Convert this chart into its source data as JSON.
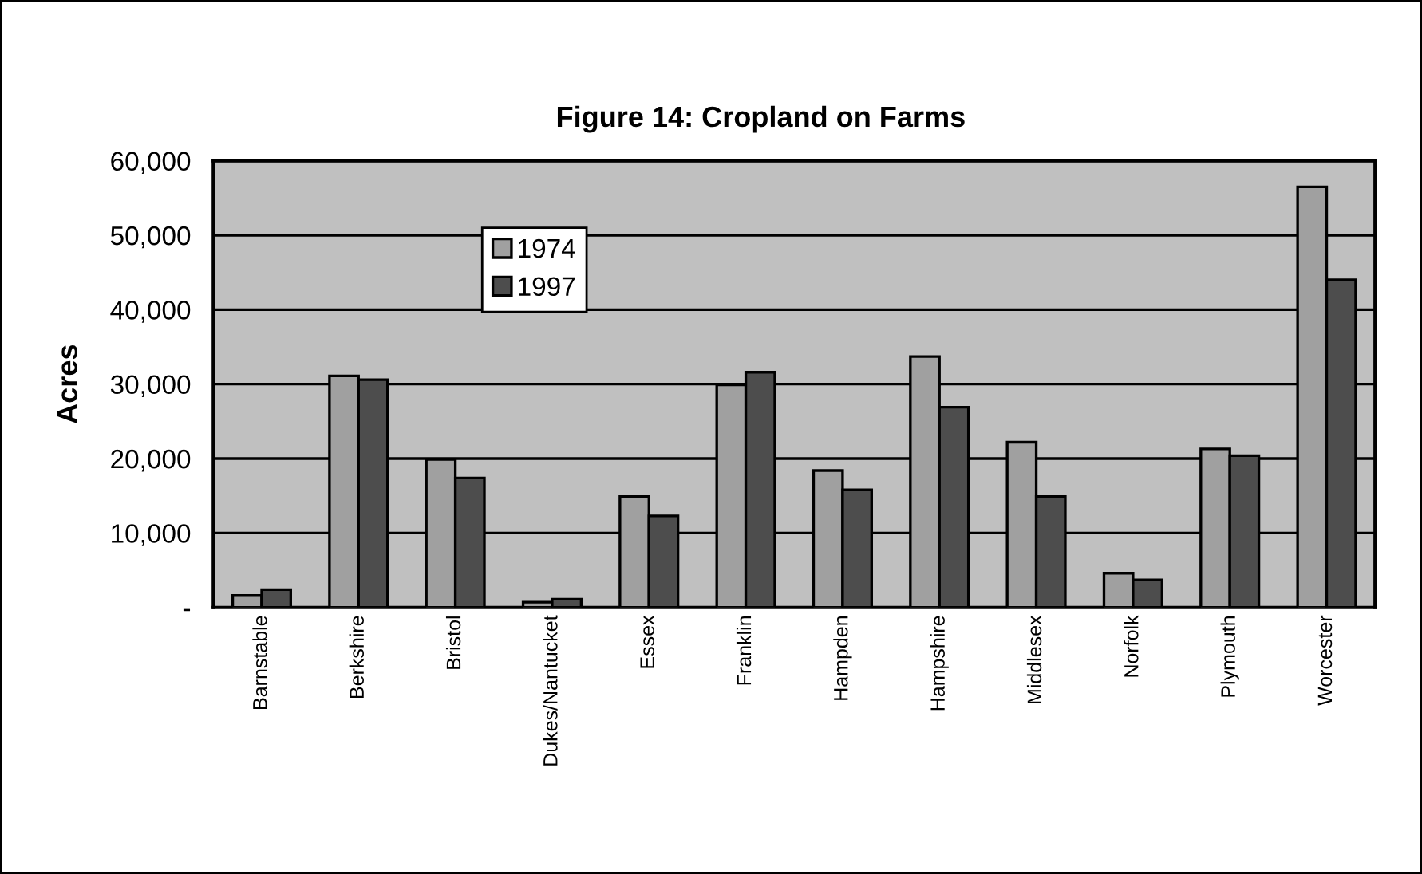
{
  "chart_data": {
    "type": "bar",
    "title": "Figure 14: Cropland on Farms",
    "ylabel": "Acres",
    "categories": [
      "Barnstable",
      "Berkshire",
      "Bristol",
      "Dukes/Nantucket",
      "Essex",
      "Franklin",
      "Hampden",
      "Hampshire",
      "Middlesex",
      "Norfolk",
      "Plymouth",
      "Worcester"
    ],
    "series": [
      {
        "name": "1974",
        "color": "#a0a0a0",
        "values": [
          1600,
          31100,
          19900,
          700,
          14900,
          29900,
          18400,
          33700,
          22200,
          4600,
          21300,
          56500
        ]
      },
      {
        "name": "1997",
        "color": "#4d4d4d",
        "values": [
          2400,
          30600,
          17400,
          1100,
          12300,
          31600,
          15800,
          26900,
          14900,
          3700,
          20400,
          44000
        ]
      }
    ],
    "ylim": [
      0,
      60000
    ],
    "yticks": [
      {
        "value": 0,
        "label": "-"
      },
      {
        "value": 10000,
        "label": "10,000"
      },
      {
        "value": 20000,
        "label": "20,000"
      },
      {
        "value": 30000,
        "label": "30,000"
      },
      {
        "value": 40000,
        "label": "40,000"
      },
      {
        "value": 50000,
        "label": "50,000"
      },
      {
        "value": 60000,
        "label": "60,000"
      }
    ],
    "grid": "y",
    "legend": "top left"
  }
}
